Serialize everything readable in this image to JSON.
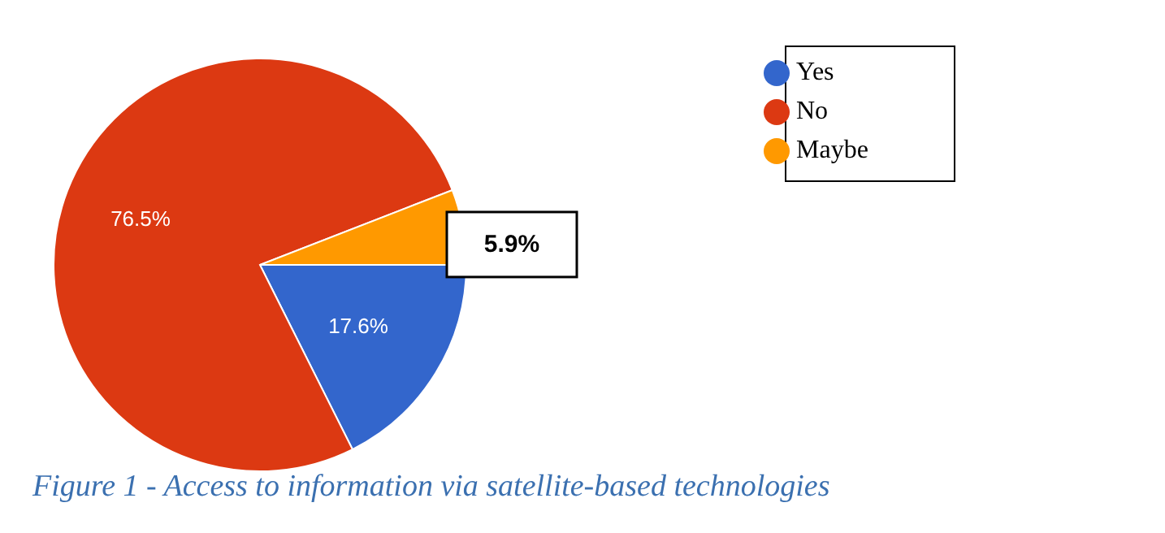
{
  "chart_data": {
    "type": "pie",
    "title": "Figure 1 - Access to information via satellite-based technologies",
    "categories": [
      "Yes",
      "No",
      "Maybe"
    ],
    "values": [
      17.6,
      76.5,
      5.9
    ],
    "colors": [
      "#3366cc",
      "#dc3912",
      "#ff9900"
    ],
    "value_labels": [
      "17.6%",
      "76.5%",
      "5.9%"
    ],
    "legend": "top right"
  }
}
